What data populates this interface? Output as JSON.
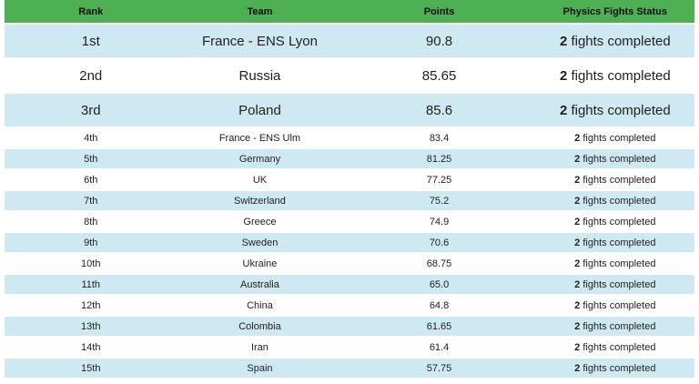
{
  "chart_data": {
    "type": "table",
    "columns": [
      "Rank",
      "Team",
      "Points",
      "Physics Fights Status"
    ],
    "status_suffix": " fights completed",
    "rows": [
      {
        "rank": "1st",
        "team": "France - ENS Lyon",
        "points": "90.8",
        "fights": "2"
      },
      {
        "rank": "2nd",
        "team": "Russia",
        "points": "85.65",
        "fights": "2"
      },
      {
        "rank": "3rd",
        "team": "Poland",
        "points": "85.6",
        "fights": "2"
      },
      {
        "rank": "4th",
        "team": "France - ENS Ulm",
        "points": "83.4",
        "fights": "2"
      },
      {
        "rank": "5th",
        "team": "Germany",
        "points": "81.25",
        "fights": "2"
      },
      {
        "rank": "6th",
        "team": "UK",
        "points": "77.25",
        "fights": "2"
      },
      {
        "rank": "7th",
        "team": "Switzerland",
        "points": "75.2",
        "fights": "2"
      },
      {
        "rank": "8th",
        "team": "Greece",
        "points": "74.9",
        "fights": "2"
      },
      {
        "rank": "9th",
        "team": "Sweden",
        "points": "70.6",
        "fights": "2"
      },
      {
        "rank": "10th",
        "team": "Ukraine",
        "points": "68.75",
        "fights": "2"
      },
      {
        "rank": "11th",
        "team": "Australia",
        "points": "65.0",
        "fights": "2"
      },
      {
        "rank": "12th",
        "team": "China",
        "points": "64.8",
        "fights": "2"
      },
      {
        "rank": "13th",
        "team": "Colombia",
        "points": "61.65",
        "fights": "2"
      },
      {
        "rank": "14th",
        "team": "Iran",
        "points": "61.4",
        "fights": "2"
      },
      {
        "rank": "15th",
        "team": "Spain",
        "points": "57.75",
        "fights": "2"
      }
    ],
    "colors": {
      "header_bg": "#4cb052",
      "header_text": "#0d0d0d",
      "row_stripe_bg": "#cfe9f3",
      "row_plain_bg": "#ffffff",
      "body_text": "#1f1f1f"
    }
  }
}
